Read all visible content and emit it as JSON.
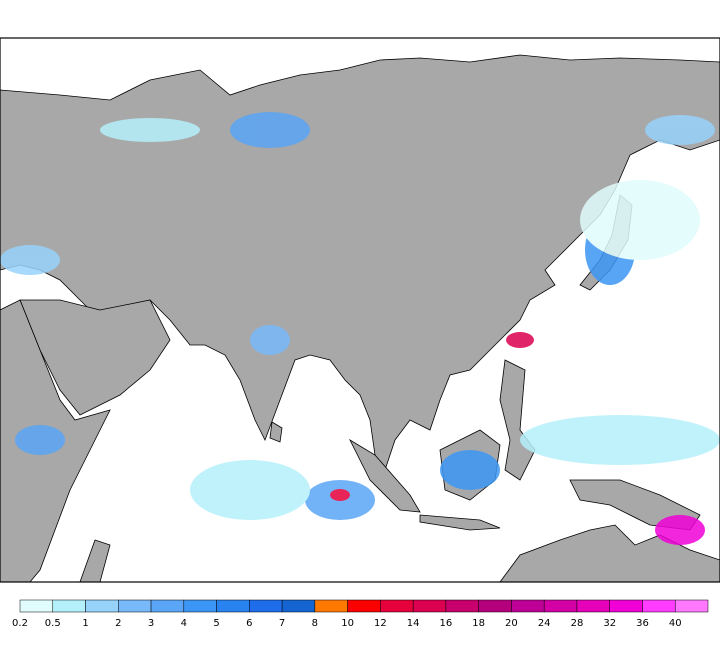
{
  "colorbar": {
    "levels": [
      0.2,
      0.5,
      1,
      2,
      3,
      4,
      5,
      6,
      7,
      8,
      10,
      12,
      14,
      16,
      18,
      20,
      24,
      28,
      32,
      36,
      40
    ],
    "colors": [
      "#e1fcfc",
      "#b4f0fa",
      "#96d2fa",
      "#78b9fa",
      "#5aa5f5",
      "#3c96f5",
      "#2882f0",
      "#1e6eeb",
      "#1464d2",
      "#ff7800",
      "#fa0000",
      "#e6003c",
      "#dc0050",
      "#c8006e",
      "#b4007d",
      "#be0096",
      "#d200a5",
      "#e600b9",
      "#f000d7",
      "#ff3cff",
      "#ff78ff"
    ]
  }
}
